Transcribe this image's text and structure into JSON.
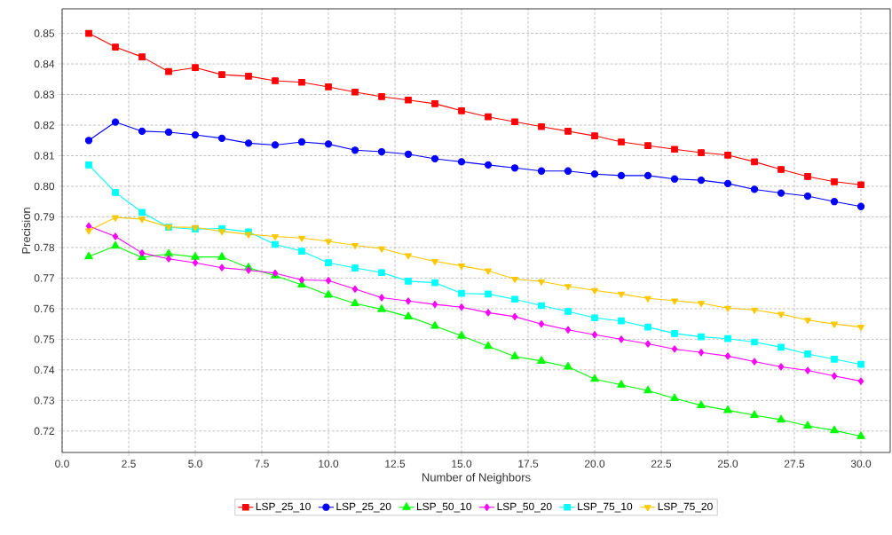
{
  "chart_data": {
    "type": "line",
    "xlabel": "Number of Neighbors",
    "ylabel": "Precision",
    "x": [
      1,
      2,
      3,
      4,
      5,
      6,
      7,
      8,
      9,
      10,
      11,
      12,
      13,
      14,
      15,
      16,
      17,
      18,
      19,
      20,
      21,
      22,
      23,
      24,
      25,
      26,
      27,
      28,
      29,
      30
    ],
    "series": [
      {
        "name": "LSP_25_10",
        "color": "#ff0000",
        "marker": "square",
        "values": [
          0.85,
          0.8455,
          0.8423,
          0.8375,
          0.8388,
          0.8365,
          0.836,
          0.8345,
          0.834,
          0.8325,
          0.8308,
          0.8293,
          0.8282,
          0.827,
          0.8247,
          0.8227,
          0.8211,
          0.8195,
          0.818,
          0.8165,
          0.8145,
          0.8133,
          0.8121,
          0.811,
          0.8102,
          0.808,
          0.8055,
          0.8032,
          0.8015,
          0.8005
        ]
      },
      {
        "name": "LSP_25_20",
        "color": "#0000ff",
        "marker": "circle",
        "values": [
          0.815,
          0.821,
          0.818,
          0.8177,
          0.8168,
          0.8157,
          0.8141,
          0.8135,
          0.8145,
          0.8138,
          0.8118,
          0.8113,
          0.8105,
          0.809,
          0.808,
          0.807,
          0.806,
          0.805,
          0.805,
          0.804,
          0.8035,
          0.8035,
          0.8024,
          0.802,
          0.8009,
          0.799,
          0.7978,
          0.7968,
          0.795,
          0.7934
        ]
      },
      {
        "name": "LSP_50_10",
        "color": "#00ff00",
        "marker": "triangle",
        "values": [
          0.777,
          0.7805,
          0.7768,
          0.7779,
          0.7769,
          0.7769,
          0.7734,
          0.7708,
          0.7678,
          0.7645,
          0.7617,
          0.7598,
          0.7574,
          0.7543,
          0.7511,
          0.7477,
          0.7444,
          0.7429,
          0.741,
          0.737,
          0.7351,
          0.7332,
          0.7307,
          0.7284,
          0.7268,
          0.7252,
          0.7237,
          0.7217,
          0.7202,
          0.7183
        ]
      },
      {
        "name": "LSP_50_20",
        "color": "#ff00ff",
        "marker": "diamond",
        "values": [
          0.787,
          0.7836,
          0.7782,
          0.7763,
          0.775,
          0.7734,
          0.7726,
          0.7716,
          0.7694,
          0.7692,
          0.7664,
          0.7636,
          0.7625,
          0.7614,
          0.7605,
          0.7587,
          0.7574,
          0.755,
          0.7531,
          0.7515,
          0.75,
          0.7485,
          0.7468,
          0.7457,
          0.7445,
          0.7427,
          0.741,
          0.7398,
          0.738,
          0.7363
        ]
      },
      {
        "name": "LSP_75_10",
        "color": "#00ffff",
        "marker": "square",
        "values": [
          0.807,
          0.798,
          0.7915,
          0.7866,
          0.786,
          0.7862,
          0.7851,
          0.781,
          0.7788,
          0.775,
          0.7733,
          0.7718,
          0.769,
          0.7685,
          0.765,
          0.7648,
          0.7631,
          0.761,
          0.7591,
          0.757,
          0.756,
          0.754,
          0.7519,
          0.7508,
          0.7502,
          0.7491,
          0.7474,
          0.7452,
          0.7435,
          0.7418
        ]
      },
      {
        "name": "LSP_75_20",
        "color": "#ffc800",
        "marker": "triangle_down",
        "values": [
          0.7855,
          0.7898,
          0.7893,
          0.7867,
          0.7866,
          0.7853,
          0.7843,
          0.7836,
          0.7831,
          0.782,
          0.7807,
          0.7796,
          0.7774,
          0.7755,
          0.774,
          0.7724,
          0.7697,
          0.7689,
          0.7673,
          0.766,
          0.7648,
          0.7634,
          0.7626,
          0.7618,
          0.7602,
          0.7596,
          0.7582,
          0.7563,
          0.755,
          0.754
        ]
      }
    ],
    "xlim": [
      0,
      31.1
    ],
    "ylim": [
      0.713,
      0.858
    ],
    "xticks": [
      {
        "value": 0,
        "label": "0.0"
      },
      {
        "value": 2.5,
        "label": "2.5"
      },
      {
        "value": 5,
        "label": "5.0"
      },
      {
        "value": 7.5,
        "label": "7.5"
      },
      {
        "value": 10,
        "label": "10.0"
      },
      {
        "value": 12.5,
        "label": "12.5"
      },
      {
        "value": 15,
        "label": "15.0"
      },
      {
        "value": 17.5,
        "label": "17.5"
      },
      {
        "value": 20,
        "label": "20.0"
      },
      {
        "value": 22.5,
        "label": "22.5"
      },
      {
        "value": 25,
        "label": "25.0"
      },
      {
        "value": 27.5,
        "label": "27.5"
      },
      {
        "value": 30,
        "label": "30.0"
      }
    ],
    "yticks": [
      {
        "value": 0.72,
        "label": "0.72"
      },
      {
        "value": 0.73,
        "label": "0.73"
      },
      {
        "value": 0.74,
        "label": "0.74"
      },
      {
        "value": 0.75,
        "label": "0.75"
      },
      {
        "value": 0.76,
        "label": "0.76"
      },
      {
        "value": 0.77,
        "label": "0.77"
      },
      {
        "value": 0.78,
        "label": "0.78"
      },
      {
        "value": 0.79,
        "label": "0.79"
      },
      {
        "value": 0.8,
        "label": "0.80"
      },
      {
        "value": 0.81,
        "label": "0.81"
      },
      {
        "value": 0.82,
        "label": "0.82"
      },
      {
        "value": 0.83,
        "label": "0.83"
      },
      {
        "value": 0.84,
        "label": "0.84"
      },
      {
        "value": 0.85,
        "label": "0.85"
      }
    ],
    "grid": true,
    "legend": "bottom",
    "line_style": "solid"
  }
}
